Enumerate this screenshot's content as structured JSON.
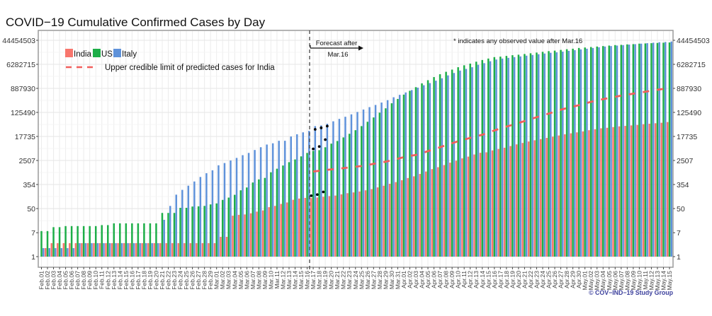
{
  "chart_data": {
    "type": "bar",
    "title": "COVID−19 Cumulative Confirmed Cases by Day",
    "xlabel": "",
    "ylabel": "",
    "y_scale": "log",
    "ylim": [
      1,
      44454503
    ],
    "y_ticks": [
      1,
      7,
      50,
      354,
      2507,
      17735,
      125490,
      887930,
      6282715,
      44454503
    ],
    "y_tick_labels": [
      "1",
      "7",
      "50",
      "354",
      "2507",
      "17735",
      "125490",
      "887930",
      "6282715",
      "44454503"
    ],
    "y_axis_sides": "left and right",
    "grid": true,
    "legend_position": "top-left",
    "forecast_start": "Mar.17",
    "categories": [
      "Feb.01",
      "Feb.02",
      "Feb.03",
      "Feb.04",
      "Feb.05",
      "Feb.06",
      "Feb.07",
      "Feb.08",
      "Feb.09",
      "Feb.10",
      "Feb.11",
      "Feb.12",
      "Feb.13",
      "Feb.14",
      "Feb.15",
      "Feb.16",
      "Feb.17",
      "Feb.18",
      "Feb.19",
      "Feb.20",
      "Feb.21",
      "Feb.22",
      "Feb.23",
      "Feb.24",
      "Feb.25",
      "Feb.26",
      "Feb.27",
      "Feb.28",
      "Feb.29",
      "Mar.01",
      "Mar.02",
      "Mar.03",
      "Mar.04",
      "Mar.05",
      "Mar.06",
      "Mar.07",
      "Mar.08",
      "Mar.09",
      "Mar.10",
      "Mar.11",
      "Mar.12",
      "Mar.13",
      "Mar.14",
      "Mar.15",
      "Mar.16",
      "Mar.17",
      "Mar.18",
      "Mar.19",
      "Mar.20",
      "Mar.21",
      "Mar.22",
      "Mar.23",
      "Mar.24",
      "Mar.25",
      "Mar.26",
      "Mar.27",
      "Mar.28",
      "Mar.29",
      "Mar.30",
      "Mar.31",
      "Apr.01",
      "Apr.02",
      "Apr.03",
      "Apr.04",
      "Apr.05",
      "Apr.06",
      "Apr.07",
      "Apr.08",
      "Apr.09",
      "Apr.10",
      "Apr.11",
      "Apr.12",
      "Apr.13",
      "Apr.14",
      "Apr.15",
      "Apr.16",
      "Apr.17",
      "Apr.18",
      "Apr.19",
      "Apr.20",
      "Apr.21",
      "Apr.22",
      "Apr.23",
      "Apr.24",
      "Apr.25",
      "Apr.26",
      "Apr.27",
      "Apr.28",
      "Apr.29",
      "Apr.30",
      "May.01",
      "May.02",
      "May.03",
      "May.04",
      "May.05",
      "May.06",
      "May.07",
      "May.08",
      "May.09",
      "May.10",
      "May.11",
      "May.12",
      "May.13",
      "May.14",
      "May.15"
    ],
    "series": [
      {
        "name": "India",
        "color": "#F8766D",
        "values": [
          1,
          2,
          3,
          3,
          3,
          3,
          3,
          3,
          3,
          3,
          3,
          3,
          3,
          3,
          3,
          3,
          3,
          3,
          3,
          3,
          3,
          3,
          3,
          3,
          3,
          3,
          3,
          3,
          3,
          3,
          5,
          5,
          28,
          30,
          31,
          34,
          39,
          43,
          56,
          62,
          73,
          82,
          102,
          113,
          119,
          118,
          123,
          131,
          138,
          144,
          159,
          175,
          186,
          201,
          221,
          244,
          280,
          321,
          376,
          431,
          504,
          601,
          689,
          838,
          1019,
          1239,
          1449,
          1726,
          2100,
          2456,
          2987,
          3427,
          4085,
          4690,
          4875,
          5700,
          6412,
          7065,
          8110,
          9290,
          10450,
          11750,
          12970,
          14290,
          15770,
          17380,
          19180,
          21140,
          22860,
          24720,
          26730,
          29460,
          31860,
          34450,
          35820,
          38010,
          40280,
          41880,
          43550,
          45290,
          48080,
          50000,
          52000,
          54070,
          57280
        ]
      },
      {
        "name": "US",
        "color": "#1DAE48",
        "values": [
          8,
          8,
          11,
          11,
          12,
          12,
          12,
          12,
          12,
          12,
          13,
          13,
          15,
          15,
          15,
          15,
          15,
          15,
          15,
          15,
          35,
          35,
          35,
          53,
          53,
          59,
          60,
          62,
          70,
          76,
          101,
          122,
          153,
          221,
          278,
          417,
          537,
          605,
          959,
          1281,
          1663,
          2179,
          2726,
          3499,
          4632,
          5483,
          5808,
          7345,
          9863,
          12220,
          16400,
          21980,
          29500,
          41120,
          58480,
          83180,
          123000,
          175000,
          263700,
          375000,
          533300,
          729400,
          979500,
          1337000,
          1726000,
          2223000,
          2812000,
          3420000,
          4083000,
          4966000,
          5808000,
          6653000,
          7780000,
          8933000,
          10050000,
          11300000,
          11750000,
          12450000,
          13210000,
          13740000,
          14560000,
          15450000,
          16370000,
          17380000,
          18410000,
          19140000,
          20320000,
          21530000,
          22390000,
          23770000,
          24720000,
          25700000,
          26730000,
          27800000,
          28900000,
          30060000,
          30620000,
          31840000,
          32510000,
          33810000,
          34440000,
          35160000,
          35810000,
          36560000,
          37240000
        ]
      },
      {
        "name": "Italy",
        "color": "#5F92DA",
        "values": [
          2,
          2,
          2,
          2,
          2,
          2,
          3,
          3,
          3,
          3,
          3,
          3,
          3,
          3,
          3,
          3,
          3,
          3,
          3,
          3,
          20,
          62,
          155,
          229,
          322,
          453,
          655,
          888,
          1128,
          1694,
          2036,
          2502,
          3089,
          3858,
          4636,
          5883,
          7375,
          9172,
          10149,
          12462,
          12462,
          17660,
          21157,
          24747,
          27980,
          41120,
          43550,
          50000,
          60810,
          73960,
          88100,
          107200,
          130300,
          158500,
          192800,
          230100,
          279900,
          340400,
          430500,
          523600,
          636800,
          774500,
          941900,
          1146000,
          1365000,
          1660000,
          2018000,
          2553000,
          3105000,
          3776000,
          4325000,
          4966000,
          6039000,
          6918000,
          8091000,
          9290000,
          10050000,
          10640000,
          11300000,
          11970000,
          12710000,
          13460000,
          14290000,
          15140000,
          16070000,
          16710000,
          17700000,
          18790000,
          19910000,
          21130000,
          22390000,
          23770000,
          25180000,
          26730000,
          27800000,
          28900000,
          30060000,
          31260000,
          32510000,
          33810000,
          35160000,
          36560000,
          38020000,
          38730000,
          40270000
        ]
      }
    ],
    "upper_limit": {
      "name": "Upper credible limit of predicted cases for India",
      "color": "#F25F5C",
      "start_date": "Mar.17",
      "values": [
        1019,
        1080,
        1145,
        1214,
        1288,
        1340,
        1420,
        1506,
        1597,
        1727,
        1905,
        2060,
        2270,
        2554,
        2873,
        3296,
        3631,
        3927,
        4508,
        5370,
        6281,
        7345,
        8767,
        10250,
        11990,
        13740,
        15770,
        18070,
        20320,
        24260,
        28900,
        33810,
        39540,
        45290,
        52970,
        61950,
        72440,
        84720,
        99080,
        113700,
        133000,
        155600,
        178200,
        200400,
        225400,
        258800,
        296500,
        333400,
        368100,
        405500,
        446700,
        493200,
        533300,
        576800,
        623700,
        674500,
        729400,
        788800,
        853100,
        903600
      ]
    },
    "observed_after_forecast": [
      {
        "date": "Mar.17",
        "India": 142,
        "US": 6421,
        "Italy": 31506
      },
      {
        "date": "Mar.18",
        "India": 156,
        "US": 7786,
        "Italy": 35713
      },
      {
        "date": "Mar.19",
        "India": 194,
        "US": 13680,
        "Italy": 41035
      }
    ],
    "annotations": {
      "forecast_line1": "Forecast after",
      "forecast_line2": "Mar.16",
      "observed_note": "* indicates any observed value after Mar.16",
      "credit": "© COV−IND−19 Study Group"
    }
  }
}
